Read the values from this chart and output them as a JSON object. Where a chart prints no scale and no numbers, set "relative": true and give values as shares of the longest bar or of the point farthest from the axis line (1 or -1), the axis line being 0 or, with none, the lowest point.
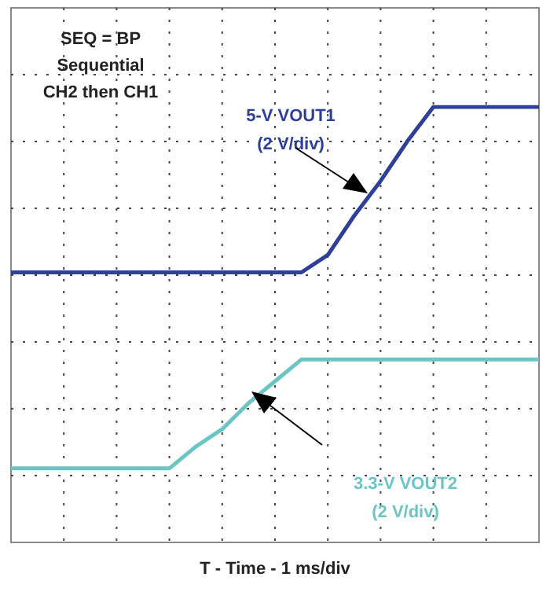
{
  "chart_data": {
    "type": "line",
    "relative": true,
    "xlabel": "T - Time - 1 ms/div",
    "grid": true,
    "legend": false,
    "marker": "none",
    "line_style": "solid",
    "annotations": [
      "SEQ = BP Sequential CH2 then CH1"
    ],
    "categories": [
      null,
      null,
      null,
      null,
      null,
      null,
      null,
      null,
      null,
      null,
      null,
      null,
      null,
      null,
      null,
      null,
      null,
      null,
      null,
      null,
      null
    ],
    "series": [
      {
        "name": "5-V VOUT1 (2 V/div)",
        "color": "#2e3f9a",
        "values": [
          0.62,
          0.62,
          0.62,
          0.62,
          0.62,
          0.62,
          0.62,
          0.62,
          0.62,
          0.62,
          0.62,
          0.62,
          0.66,
          0.75,
          0.83,
          0.92,
          1,
          1,
          1,
          1,
          1
        ]
      },
      {
        "name": "3.3-V VOUT2 (2 V/div)",
        "color": "#6cc5c5",
        "values": [
          0.17,
          0.17,
          0.17,
          0.17,
          0.17,
          0.17,
          0.17,
          0.22,
          0.26,
          0.32,
          0.37,
          0.42,
          0.42,
          0.42,
          0.42,
          0.42,
          0.42,
          0.42,
          0.42,
          0.42,
          0.42
        ]
      }
    ]
  }
}
